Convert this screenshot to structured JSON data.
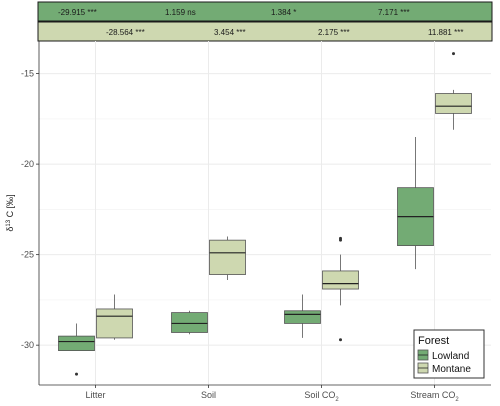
{
  "chart_data": {
    "type": "box",
    "xlabel": "",
    "ylabel": "δ13 C [‰]",
    "ylabel_parts": {
      "delta": "δ",
      "sup": "13",
      "rest": " C [‰]"
    },
    "ylim": [
      -32.2,
      -13.2
    ],
    "yticks": [
      -30,
      -25,
      -20,
      -15
    ],
    "ytick_labels": [
      "-30",
      "-25",
      "-20",
      "-15"
    ],
    "grid": true,
    "categories": [
      {
        "label": "Litter",
        "base": "Litter",
        "sub": ""
      },
      {
        "label": "Soil",
        "base": "Soil",
        "sub": ""
      },
      {
        "label": "Soil CO2",
        "base": "Soil CO",
        "sub": "2"
      },
      {
        "label": "Stream CO2",
        "base": "Stream CO",
        "sub": "2"
      }
    ],
    "series": [
      {
        "name": "Lowland",
        "color": "#73ab74",
        "boxes": [
          {
            "whisker_low": -30.3,
            "q1": -30.3,
            "median": -29.8,
            "q3": -29.5,
            "whisker_high": -28.8,
            "outliers": [
              -31.6
            ]
          },
          {
            "whisker_low": -29.4,
            "q1": -29.3,
            "median": -28.8,
            "q3": -28.2,
            "whisker_high": -28.1,
            "outliers": []
          },
          {
            "whisker_low": -29.6,
            "q1": -28.8,
            "median": -28.3,
            "q3": -28.1,
            "whisker_high": -27.2,
            "outliers": []
          },
          {
            "whisker_low": -25.8,
            "q1": -24.5,
            "median": -22.9,
            "q3": -21.3,
            "whisker_high": -18.5,
            "outliers": []
          }
        ]
      },
      {
        "name": "Montane",
        "color": "#ced8b0",
        "boxes": [
          {
            "whisker_low": -29.7,
            "q1": -29.6,
            "median": -28.4,
            "q3": -28.0,
            "whisker_high": -27.2,
            "outliers": []
          },
          {
            "whisker_low": -26.4,
            "q1": -26.1,
            "median": -24.9,
            "q3": -24.2,
            "whisker_high": -24.0,
            "outliers": []
          },
          {
            "whisker_low": -27.8,
            "q1": -26.9,
            "median": -26.6,
            "q3": -25.9,
            "whisker_high": -25.0,
            "outliers": [
              -29.7,
              -24.2,
              -24.1
            ]
          },
          {
            "whisker_low": -18.1,
            "q1": -17.2,
            "median": -16.8,
            "q3": -16.1,
            "whisker_high": -15.9,
            "outliers": [
              -13.9
            ]
          }
        ]
      }
    ],
    "stats": {
      "Lowland": [
        "-29.915 ***",
        "1.159 ns",
        "1.384 *",
        "7.171 ***"
      ],
      "Montane": [
        "-28.564 ***",
        "3.454 ***",
        "2.175 ***",
        "11.881 ***"
      ]
    },
    "legend": {
      "title": "Forest",
      "position": "bottom-right",
      "entries": [
        "Lowland",
        "Montane"
      ]
    }
  },
  "colors": {
    "lowland": "#73ab74",
    "montane": "#ced8b0",
    "grid": "#ebebeb",
    "axis": "#333333",
    "point": "#333333"
  }
}
